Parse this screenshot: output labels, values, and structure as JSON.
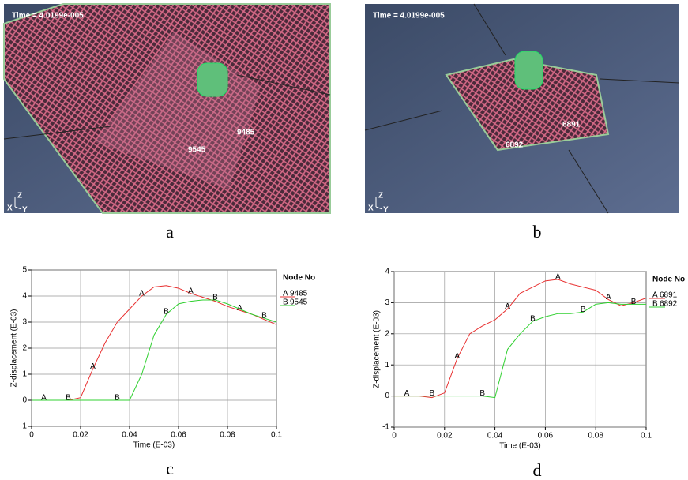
{
  "panels": [
    {
      "time": "Time = 4.0199e-005",
      "nodes": [
        "9485",
        "9545"
      ],
      "axes": [
        "Z",
        "X",
        "Y"
      ],
      "caption": "a"
    },
    {
      "time": "Time = 4.0199e-005",
      "nodes": [
        "6891",
        "6892"
      ],
      "axes": [
        "Z",
        "X",
        "Y"
      ],
      "caption": "b"
    }
  ],
  "chart_data": [
    {
      "type": "line",
      "caption": "c",
      "x_label": "Time (E-03)",
      "y_label": "Z-displacement (E-03)",
      "legend_title": "Node No",
      "x": [
        0,
        0.005,
        0.01,
        0.015,
        0.02,
        0.025,
        0.03,
        0.035,
        0.04,
        0.045,
        0.05,
        0.055,
        0.06,
        0.065,
        0.07,
        0.075,
        0.08,
        0.085,
        0.09,
        0.095,
        0.1
      ],
      "series": [
        {
          "name": "9485",
          "marker": "A",
          "color": "#e83030",
          "values": [
            0,
            0,
            0,
            0,
            0.1,
            1.2,
            2.2,
            3.0,
            3.5,
            4.0,
            4.35,
            4.4,
            4.3,
            4.1,
            3.95,
            3.8,
            3.6,
            3.45,
            3.3,
            3.1,
            2.9
          ]
        },
        {
          "name": "9545",
          "marker": "B",
          "color": "#30d030",
          "values": [
            0,
            0,
            0,
            0,
            0,
            0,
            0,
            0,
            0,
            1.0,
            2.5,
            3.3,
            3.7,
            3.8,
            3.85,
            3.85,
            3.7,
            3.5,
            3.3,
            3.15,
            3.0
          ]
        }
      ],
      "xlim": [
        0,
        0.1
      ],
      "xticks": [
        0,
        0.02,
        0.04,
        0.06,
        0.08,
        0.1
      ],
      "ylim": [
        -1,
        5
      ],
      "yticks": [
        -1,
        0,
        1,
        2,
        3,
        4,
        5
      ],
      "grid": true
    },
    {
      "type": "line",
      "caption": "d",
      "x_label": "Time (E-03)",
      "y_label": "Z-displacement (E-03)",
      "legend_title": "Node No",
      "x": [
        0,
        0.005,
        0.01,
        0.015,
        0.02,
        0.025,
        0.03,
        0.035,
        0.04,
        0.045,
        0.05,
        0.055,
        0.06,
        0.065,
        0.07,
        0.075,
        0.08,
        0.085,
        0.09,
        0.095,
        0.1
      ],
      "series": [
        {
          "name": "6891",
          "marker": "A",
          "color": "#e83030",
          "values": [
            0,
            0,
            0,
            -0.05,
            0.1,
            1.2,
            2.0,
            2.25,
            2.45,
            2.8,
            3.3,
            3.5,
            3.7,
            3.75,
            3.6,
            3.5,
            3.4,
            3.1,
            2.9,
            3.0,
            3.15
          ]
        },
        {
          "name": "6892",
          "marker": "B",
          "color": "#30d030",
          "values": [
            0,
            0,
            0,
            0,
            0,
            0,
            0,
            0,
            -0.05,
            1.5,
            2.0,
            2.4,
            2.55,
            2.65,
            2.65,
            2.7,
            2.95,
            3.0,
            2.95,
            2.95,
            2.95
          ]
        }
      ],
      "xlim": [
        0,
        0.1
      ],
      "xticks": [
        0,
        0.02,
        0.04,
        0.06,
        0.08,
        0.1
      ],
      "ylim": [
        -1,
        4
      ],
      "yticks": [
        -1,
        0,
        1,
        2,
        3,
        4
      ],
      "grid": true
    }
  ]
}
